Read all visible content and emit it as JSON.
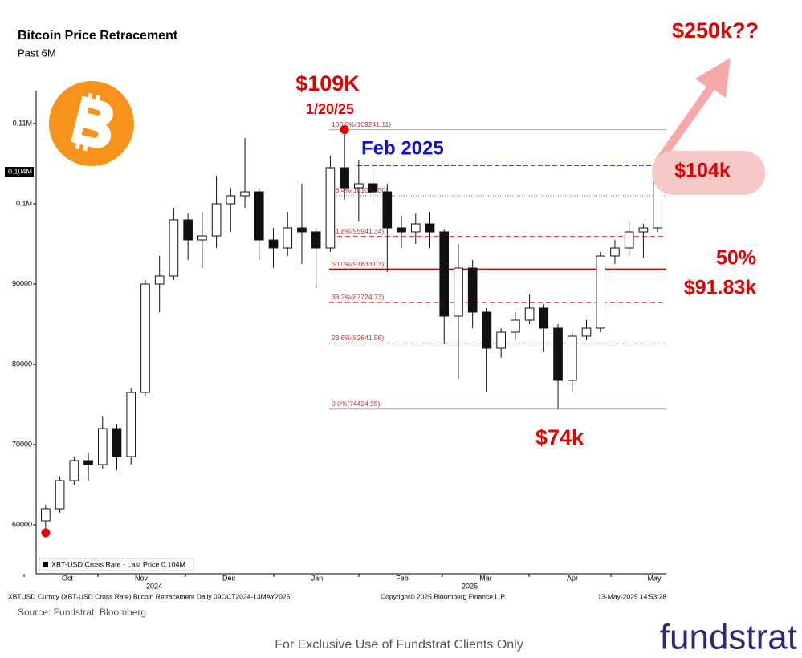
{
  "chart_data": {
    "type": "candlestick",
    "title": "Bitcoin Price Retracement",
    "subtitle": "Past 6M",
    "ylim": [
      53900,
      114100
    ],
    "yticks": [
      60000,
      70000,
      80000,
      90000,
      {
        "value": 100000,
        "label": "0.1M"
      },
      {
        "value": 110000,
        "label": "0.11M"
      }
    ],
    "last_price": {
      "value": 104000,
      "label": "0.104M"
    },
    "months": [
      "Oct",
      "Nov",
      "Dec",
      "Jan",
      "Feb",
      "Mar",
      "Apr",
      "May"
    ],
    "years": [
      "2024",
      "2025"
    ],
    "legend": "XBT-USD Cross Rate - Last Price 0.104M",
    "up_color": "#ffffff",
    "down_color": "#111111",
    "candles": [
      [
        60500,
        62500,
        59000,
        62000
      ],
      [
        62000,
        66000,
        61500,
        65500
      ],
      [
        65500,
        68500,
        65000,
        68000
      ],
      [
        68000,
        69000,
        65500,
        67500
      ],
      [
        67500,
        73500,
        67000,
        72000
      ],
      [
        72000,
        72500,
        66800,
        68500
      ],
      [
        68500,
        77000,
        67500,
        76500
      ],
      [
        76500,
        90500,
        76000,
        90000
      ],
      [
        90000,
        93500,
        86500,
        91000
      ],
      [
        91000,
        99500,
        90500,
        98000
      ],
      [
        98000,
        98800,
        93000,
        95500
      ],
      [
        95500,
        99000,
        92000,
        96000
      ],
      [
        96000,
        103500,
        94500,
        100000
      ],
      [
        100000,
        102000,
        96500,
        101000
      ],
      [
        101000,
        108200,
        99500,
        101500
      ],
      [
        101500,
        102000,
        93000,
        95500
      ],
      [
        95500,
        97000,
        92000,
        94500
      ],
      [
        94500,
        99000,
        93500,
        97000
      ],
      [
        97000,
        102500,
        92500,
        96500
      ],
      [
        96500,
        97000,
        89500,
        94500
      ],
      [
        94500,
        106000,
        94000,
        104500
      ],
      [
        104500,
        109241.11,
        100500,
        102000
      ],
      [
        102000,
        105500,
        97800,
        102500
      ],
      [
        102500,
        105000,
        100000,
        101500
      ],
      [
        101500,
        102500,
        91500,
        97000
      ],
      [
        97000,
        98500,
        94500,
        96500
      ],
      [
        96500,
        98800,
        95000,
        97500
      ],
      [
        97500,
        99000,
        94500,
        96500
      ],
      [
        96500,
        96800,
        82500,
        86000
      ],
      [
        86000,
        95000,
        78200,
        92000
      ],
      [
        92000,
        93000,
        84500,
        86500
      ],
      [
        86500,
        87000,
        76600,
        82000
      ],
      [
        82000,
        84500,
        80800,
        84000
      ],
      [
        84000,
        86500,
        83000,
        85500
      ],
      [
        85500,
        88700,
        85000,
        87000
      ],
      [
        87000,
        87500,
        81500,
        84500
      ],
      [
        84500,
        85000,
        74424.95,
        78000
      ],
      [
        78000,
        84000,
        76500,
        83500
      ],
      [
        83500,
        85500,
        83000,
        84500
      ],
      [
        84500,
        94000,
        84000,
        93500
      ],
      [
        93500,
        95500,
        92500,
        94500
      ],
      [
        94500,
        97800,
        93500,
        96500
      ],
      [
        96500,
        97500,
        93300,
        97000
      ],
      [
        97000,
        105000,
        96500,
        104000
      ]
    ],
    "fib_levels": [
      {
        "label": "100.0%(109241.11)",
        "value": 109241.11,
        "style": "solid",
        "color": "#f08a8a"
      },
      {
        "label": "76.4%(101024.50)",
        "value": 101024.5,
        "style": "dotted",
        "color": "#e05050"
      },
      {
        "label": "61.8%(95941.34)",
        "value": 95941.34,
        "style": "dashed",
        "color": "#e03030"
      },
      {
        "label": "50.0%(91833.03)",
        "value": 91833.03,
        "style": "solid",
        "color": "#d40000"
      },
      {
        "label": "38.2%(87724.73)",
        "value": 87724.73,
        "style": "dashed",
        "color": "#e03030"
      },
      {
        "label": "23.6%(82641.56)",
        "value": 82641.56,
        "style": "dotted",
        "color": "#e05050"
      },
      {
        "label": "0.0%(74424.95)",
        "value": 74424.95,
        "style": "solid",
        "color": "#f08a8a"
      }
    ],
    "feb_level": {
      "label": "Feb 2025",
      "value": 104800,
      "color": "#1010d0"
    },
    "annotations": {
      "peak": "$109K",
      "peak_date": "1/20/25",
      "current": "$104k",
      "target": "$250k??",
      "fifty": "50%",
      "fifty_value": "$91.83k",
      "low": "$74k"
    },
    "footer": {
      "left": "XBTUSD Curncy (XBT-USD Cross Rate) Bitcoin Retracement  Daily 09OCT2024-13MAY2025",
      "center": "Copyright© 2025 Bloomberg Finance L.P.",
      "right": "13-May-2025 14:53:28"
    }
  },
  "source": "Source: Fundstrat, Bloomberg",
  "disclaimer": "For Exclusive Use of Fundstrat Clients Only",
  "brand": "fundstrat"
}
